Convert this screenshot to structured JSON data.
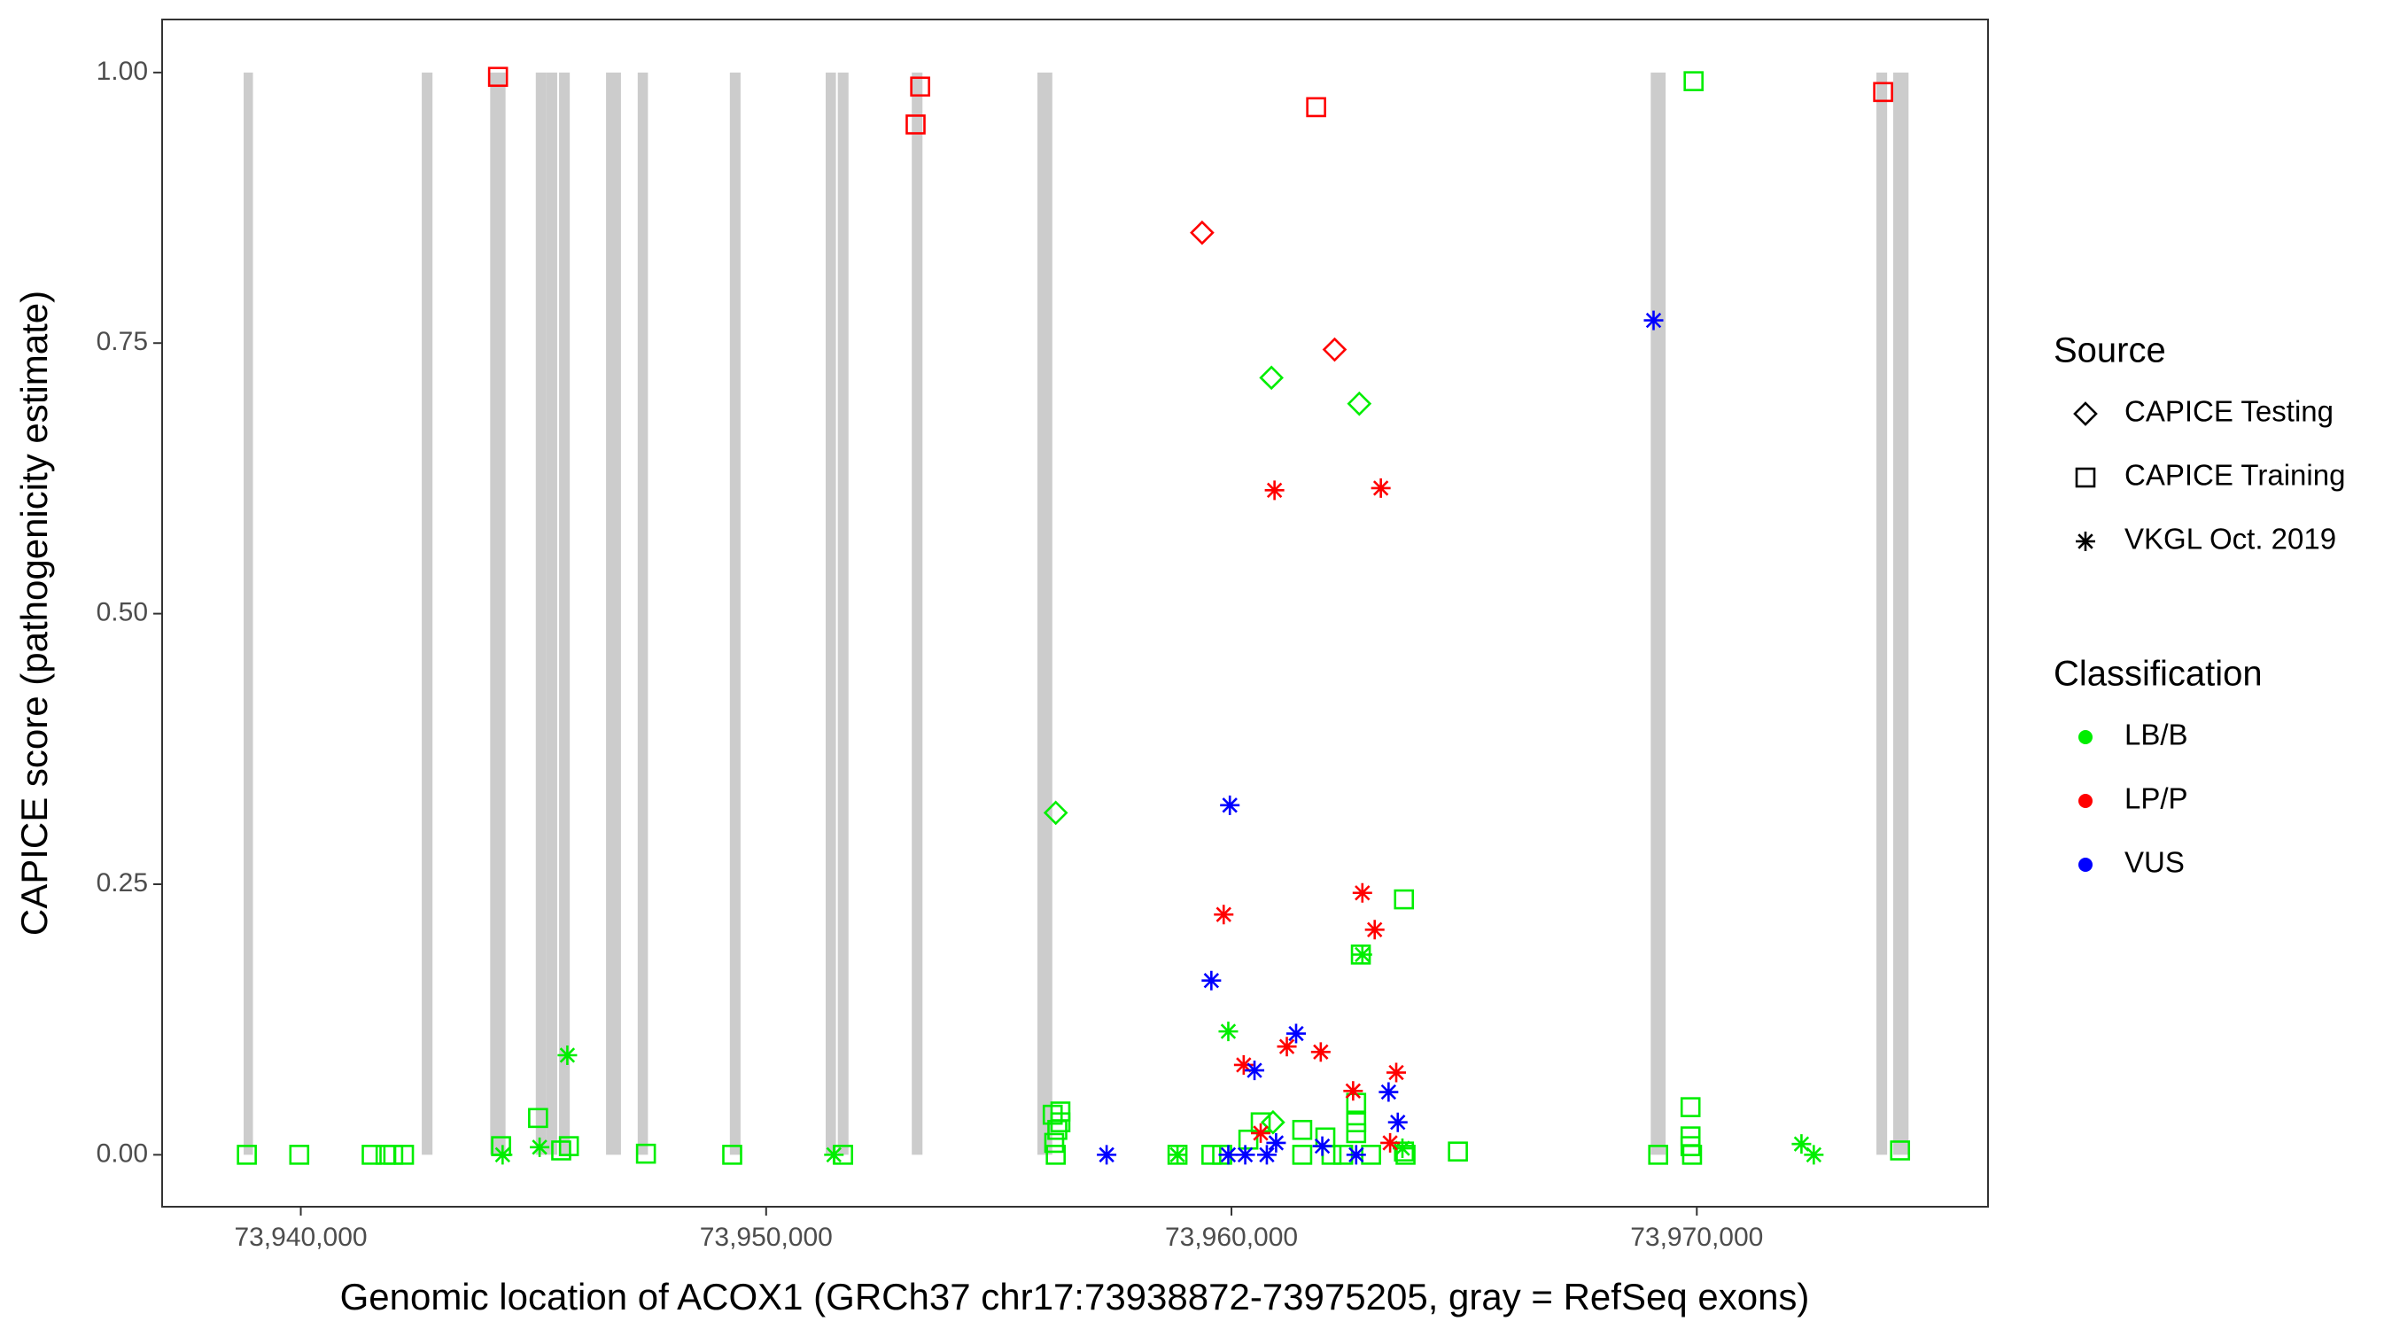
{
  "chart_data": {
    "type": "scatter",
    "x_label": "Genomic location of ACOX1 (GRCh37 chr17:73938872-73975205, gray = RefSeq exons)",
    "y_label": "CAPICE score (pathogenicity estimate)",
    "xlim": [
      73937020,
      73976258
    ],
    "ylim": [
      -0.048,
      1.049
    ],
    "xticks": [
      {
        "value": 73940000,
        "label": "73,940,000"
      },
      {
        "value": 73950000,
        "label": "73,950,000"
      },
      {
        "value": 73960000,
        "label": "73,960,000"
      },
      {
        "value": 73970000,
        "label": "73,970,000"
      }
    ],
    "yticks": [
      {
        "value": 0,
        "label": "0.00"
      },
      {
        "value": 0.25,
        "label": "0.25"
      },
      {
        "value": 0.5,
        "label": "0.50"
      },
      {
        "value": 0.75,
        "label": "0.75"
      },
      {
        "value": 1,
        "label": "1.00"
      }
    ],
    "grid": false,
    "exons": {
      "color": "#cccccc",
      "starts": [
        73938772,
        73942600,
        73944070,
        73945050,
        73945280,
        73945550,
        73946560,
        73947240,
        73949220,
        73951280,
        73951540,
        73953130,
        73955830,
        73969010,
        73973860,
        73974220
      ],
      "ends": [
        73938972,
        73942830,
        73944400,
        73945280,
        73945510,
        73945780,
        73946880,
        73947460,
        73949450,
        73951500,
        73951770,
        73953360,
        73956150,
        73969330,
        73974090,
        73974550
      ]
    },
    "series": [
      {
        "shape": "diamond",
        "color": "#00ee00",
        "x": [
          73960859,
          73962747,
          73956224,
          73960892
        ],
        "values": [
          0.718,
          0.694,
          0.316,
          0.03
        ]
      },
      {
        "shape": "diamond",
        "color": "#ff0000",
        "x": [
          73959369,
          73962217
        ],
        "values": [
          0.852,
          0.744
        ]
      },
      {
        "shape": "square",
        "color": "#00ee00",
        "x": [
          73969931,
          73938841,
          73939967,
          73941523,
          73941821,
          73941987,
          73942218,
          73944304,
          73945099,
          73945596,
          73945761,
          73947417,
          73949271,
          73951655,
          73956158,
          73956258,
          73956191,
          73956224,
          73956324,
          73956324,
          73958840,
          73959568,
          73959800,
          73960363,
          73960628,
          73961521,
          73962018,
          73962680,
          73962680,
          73962680,
          73963708,
          73963741,
          73964866,
          73963707,
          73962780,
          73969170,
          73969865,
          73969865,
          73969865,
          73969898,
          73974368,
          73961521,
          73962150,
          73962400,
          73963000
        ],
        "values": [
          0.992,
          0,
          0,
          0,
          0,
          0,
          0,
          0.008,
          0.034,
          0.004,
          0.008,
          0.001,
          0,
          0,
          0.037,
          0.023,
          0.011,
          0,
          0.03,
          0.04,
          0,
          0,
          0,
          0.014,
          0.03,
          0.023,
          0.016,
          0.048,
          0.03,
          0.02,
          0.003,
          0,
          0.003,
          0.236,
          0.185,
          0,
          0.044,
          0.017,
          0.008,
          0,
          0.004,
          0,
          0,
          0,
          0
        ]
      },
      {
        "shape": "square",
        "color": "#ff0000",
        "x": [
          73944238,
          73953212,
          73953310,
          73961820,
          73974004
        ],
        "values": [
          0.996,
          0.952,
          0.987,
          0.968,
          0.982
        ]
      },
      {
        "shape": "star",
        "color": "#00ee00",
        "x": [
          73945728,
          73959932,
          73962813,
          73945132,
          73944337,
          73951456,
          73958840,
          73963674,
          73972249,
          73972514
        ],
        "values": [
          0.092,
          0.114,
          0.185,
          0.007,
          0,
          0,
          0,
          0.006,
          0.01,
          0
        ]
      },
      {
        "shape": "star",
        "color": "#ff0000",
        "x": [
          73960925,
          73963210,
          73959833,
          73962813,
          73963078,
          73960263,
          73961190,
          73961919,
          73962614,
          73963541,
          73960628,
          73963409
        ],
        "values": [
          0.614,
          0.616,
          0.222,
          0.242,
          0.208,
          0.083,
          0.1,
          0.095,
          0.059,
          0.076,
          0.02,
          0.011
        ]
      },
      {
        "shape": "star",
        "color": "#0000ff",
        "x": [
          73969071,
          73959965,
          73959568,
          73961389,
          73960495,
          73957317,
          73963376,
          73963574,
          73960959,
          73959932,
          73960296,
          73960760,
          73961952,
          73962680
        ],
        "values": [
          0.771,
          0.323,
          0.161,
          0.112,
          0.078,
          0,
          0.058,
          0.03,
          0.011,
          0,
          0,
          0,
          0.008,
          0
        ]
      }
    ],
    "legends": [
      {
        "title": "Source",
        "entries": [
          {
            "label": "CAPICE Testing",
            "shape": "diamond"
          },
          {
            "label": "CAPICE Training",
            "shape": "square"
          },
          {
            "label": "VKGL Oct. 2019",
            "shape": "star"
          }
        ]
      },
      {
        "title": "Classification",
        "entries": [
          {
            "label": "LB/B",
            "color": "#00ee00"
          },
          {
            "label": "LP/P",
            "color": "#ff0000"
          },
          {
            "label": "VUS",
            "color": "#0000ff"
          }
        ]
      }
    ]
  }
}
